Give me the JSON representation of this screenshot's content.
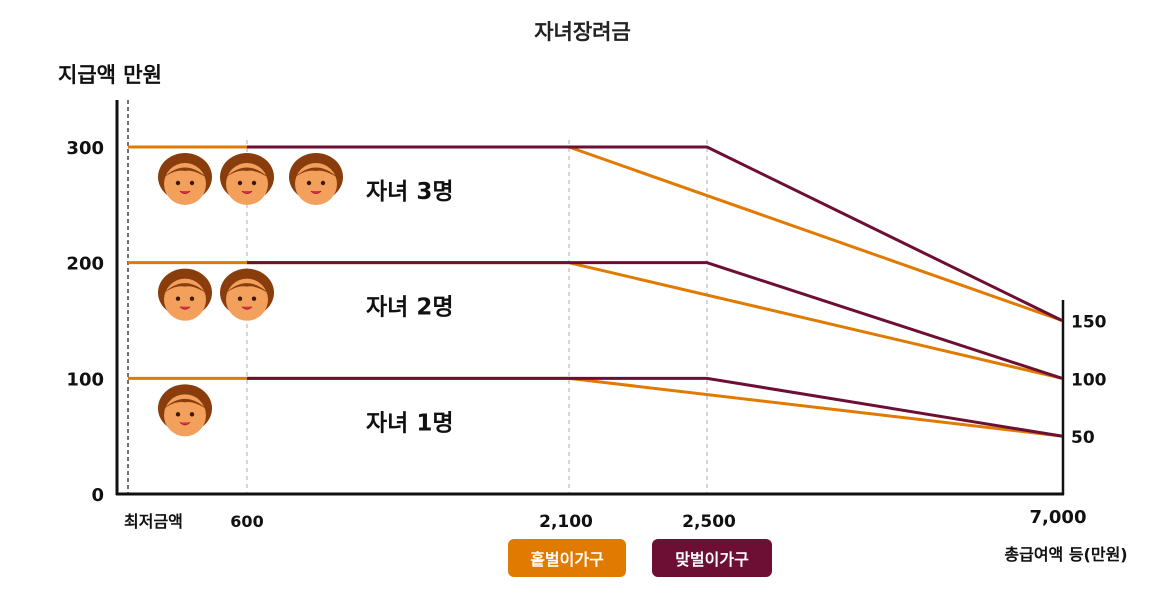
{
  "chart_data": {
    "type": "line",
    "title": "자녀장려금",
    "ylabel": "지급액 만원",
    "xlabel": "총급여액 등(만원)",
    "x_ticks": [
      "최저금액",
      "600",
      "2,100",
      "2,500",
      "7,000"
    ],
    "y_ticks": [
      "0",
      "100",
      "200",
      "300"
    ],
    "right_ticks": [
      "150",
      "100",
      "50"
    ],
    "legend": [
      {
        "label": "홑벌이가구",
        "color": "#e07a00"
      },
      {
        "label": "맞벌이가구",
        "color": "#6d0f35"
      }
    ],
    "groups": [
      {
        "label": "자녀 3명",
        "children": 3,
        "max": 300,
        "end": 150,
        "single": {
          "x": [
            0,
            2100,
            7000
          ],
          "y": [
            300,
            300,
            150
          ]
        },
        "dual": {
          "x": [
            600,
            2500,
            7000
          ],
          "y": [
            300,
            300,
            150
          ]
        }
      },
      {
        "label": "자녀 2명",
        "children": 2,
        "max": 200,
        "end": 100,
        "single": {
          "x": [
            0,
            2100,
            7000
          ],
          "y": [
            200,
            200,
            100
          ]
        },
        "dual": {
          "x": [
            600,
            2500,
            7000
          ],
          "y": [
            200,
            200,
            100
          ]
        }
      },
      {
        "label": "자녀 1명",
        "children": 1,
        "max": 100,
        "end": 50,
        "single": {
          "x": [
            0,
            2100,
            7000
          ],
          "y": [
            100,
            100,
            50
          ]
        },
        "dual": {
          "x": [
            600,
            2500,
            7000
          ],
          "y": [
            100,
            100,
            50
          ]
        }
      }
    ],
    "colors": {
      "single": "#e07a00",
      "dual": "#6d0f35",
      "face": "#f2a05c",
      "hair": "#8a3d0c",
      "grid": "#bbbbbb"
    }
  }
}
